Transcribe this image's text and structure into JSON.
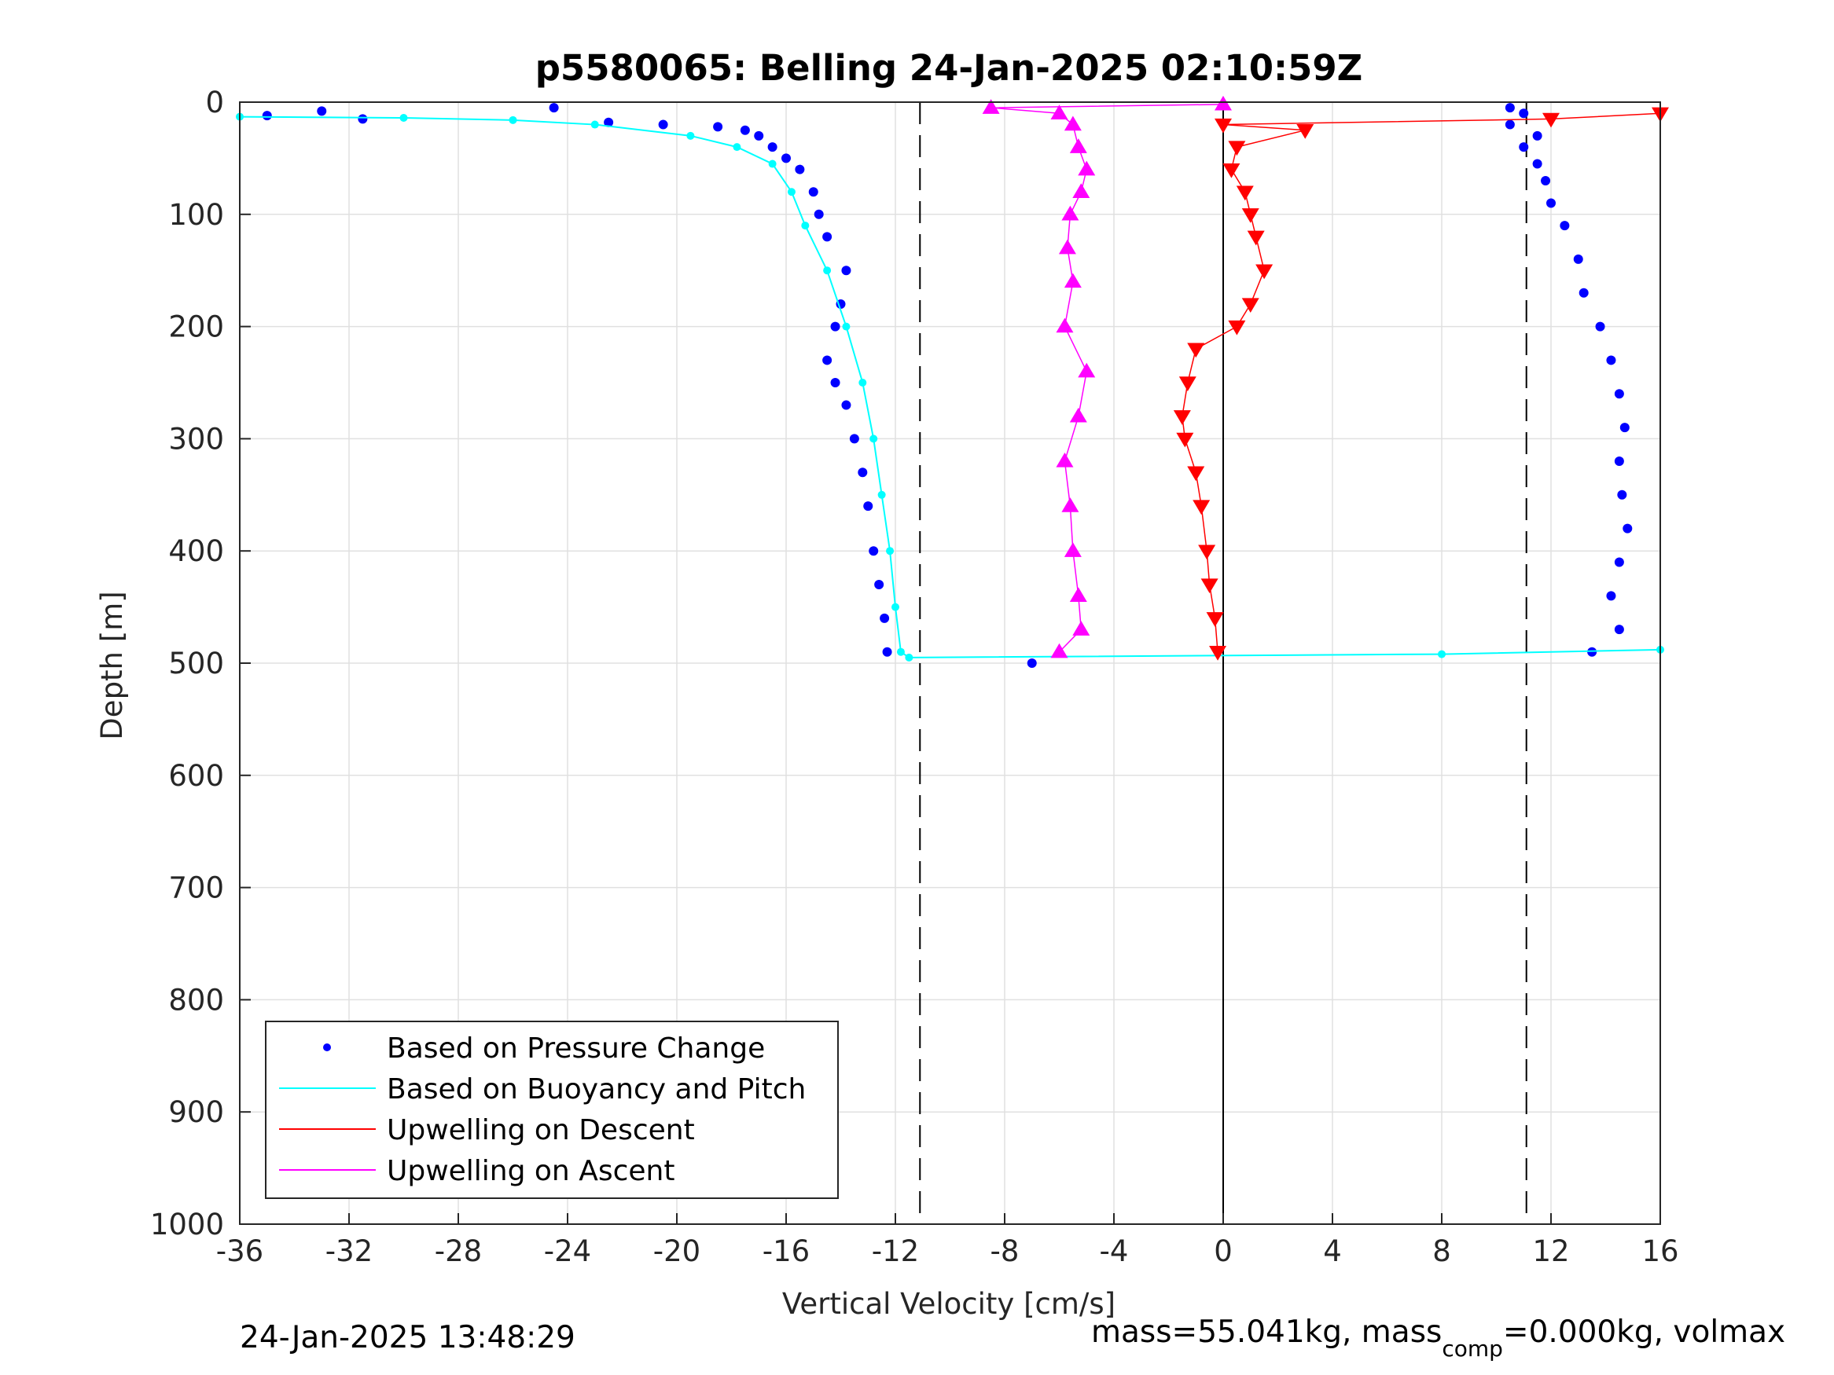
{
  "chart_data": {
    "type": "scatter",
    "title": "p5580065: Belling 24-Jan-2025 02:10:59Z",
    "xlabel": "Vertical Velocity [cm/s]",
    "ylabel": "Depth [m]",
    "xlim": [
      -36,
      16
    ],
    "ylim": [
      0,
      1000
    ],
    "y_reversed": true,
    "grid": true,
    "x_ticks": [
      -36,
      -32,
      -28,
      -24,
      -20,
      -16,
      -12,
      -8,
      -4,
      0,
      4,
      8,
      12,
      16
    ],
    "y_ticks": [
      0,
      100,
      200,
      300,
      400,
      500,
      600,
      700,
      800,
      900,
      1000
    ],
    "reference_lines": {
      "dashed_x": [
        -11.1,
        11.1
      ],
      "solid_x": [
        0
      ]
    },
    "legend_location": "bottom-left",
    "series": [
      {
        "name": "Based on Pressure Change",
        "marker": "dot",
        "color": "#0000ff",
        "depth": [
          12,
          8,
          15,
          5,
          18,
          20,
          22,
          25,
          30,
          40,
          50,
          60,
          80,
          100,
          120,
          150,
          180,
          200,
          230,
          250,
          270,
          300,
          330,
          360,
          400,
          430,
          460,
          490,
          500,
          490,
          470,
          440,
          410,
          380,
          350,
          320,
          290,
          260,
          230,
          200,
          170,
          140,
          110,
          90,
          70,
          55,
          40,
          30,
          20,
          10,
          5
        ],
        "velocity": [
          -35,
          -33,
          -31.5,
          -24.5,
          -22.5,
          -20.5,
          -18.5,
          -17.5,
          -17,
          -16.5,
          -16,
          -15.5,
          -15,
          -14.8,
          -14.5,
          -13.8,
          -14,
          -14.2,
          -14.5,
          -14.2,
          -13.8,
          -13.5,
          -13.2,
          -13,
          -12.8,
          -12.6,
          -12.4,
          -12.3,
          -7,
          13.5,
          14.5,
          14.2,
          14.5,
          14.8,
          14.6,
          14.5,
          14.7,
          14.5,
          14.2,
          13.8,
          13.2,
          13,
          12.5,
          12,
          11.8,
          11.5,
          11,
          11.5,
          10.5,
          11,
          10.5
        ]
      },
      {
        "name": "Based on Buoyancy and Pitch",
        "marker": "line",
        "color": "#00ffff",
        "depth": [
          13,
          14,
          16,
          20,
          30,
          40,
          55,
          80,
          110,
          150,
          200,
          250,
          300,
          350,
          400,
          450,
          490,
          495,
          492,
          488
        ],
        "velocity": [
          -36,
          -30,
          -26,
          -23,
          -19.5,
          -17.8,
          -16.5,
          -15.8,
          -15.3,
          -14.5,
          -13.8,
          -13.2,
          -12.8,
          -12.5,
          -12.2,
          -12,
          -11.8,
          -11.5,
          8,
          16
        ]
      },
      {
        "name": "Upwelling on Descent",
        "marker": "triangle-down",
        "color": "#ff0000",
        "depth": [
          10,
          15,
          20,
          25,
          40,
          60,
          80,
          100,
          120,
          150,
          180,
          200,
          220,
          250,
          280,
          300,
          330,
          360,
          400,
          430,
          460,
          490
        ],
        "velocity": [
          16,
          12,
          0,
          3,
          0.5,
          0.3,
          0.8,
          1,
          1.2,
          1.5,
          1,
          0.5,
          -1,
          -1.3,
          -1.5,
          -1.4,
          -1,
          -0.8,
          -0.6,
          -0.5,
          -0.3,
          -0.2
        ]
      },
      {
        "name": "Upwelling on Ascent",
        "marker": "triangle-up",
        "color": "#ff00ff",
        "depth": [
          2,
          5,
          10,
          20,
          40,
          60,
          80,
          100,
          130,
          160,
          200,
          240,
          280,
          320,
          360,
          400,
          440,
          470,
          490
        ],
        "velocity": [
          0,
          -8.5,
          -6,
          -5.5,
          -5.3,
          -5,
          -5.2,
          -5.6,
          -5.7,
          -5.5,
          -5.8,
          -5,
          -5.3,
          -5.8,
          -5.6,
          -5.5,
          -5.3,
          -5.2,
          -6
        ]
      }
    ]
  },
  "footer": {
    "timestamp": "24-Jan-2025 13:48:29",
    "mass_prefix": "mass=55.041kg, mass",
    "mass_sub": "comp",
    "mass_suffix": "=0.000kg, volmax"
  }
}
